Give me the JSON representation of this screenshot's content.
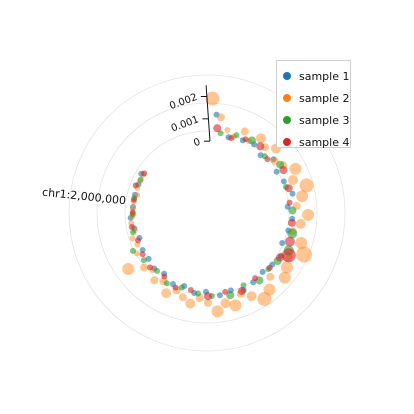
{
  "chart_data": {
    "type": "scatter",
    "layout": "circular",
    "radial_axis": {
      "ticks": [
        "0",
        "0.001",
        "0.002"
      ],
      "tick_values": [
        0,
        0.001,
        0.002
      ],
      "range": [
        0,
        0.0025
      ]
    },
    "angular_axis": {
      "label": "chr1:2,000,000",
      "label_position": 2000000,
      "range": [
        0,
        2500000
      ]
    },
    "grid": true,
    "legend": {
      "placement": "top-right",
      "entries": [
        "sample 1",
        "sample 2",
        "sample 3",
        "sample 4"
      ]
    },
    "series": [
      {
        "name": "sample 1",
        "color": "#1f77b4",
        "x": [
          40000,
          115000,
          190000,
          250000,
          310000,
          370000,
          430000,
          490000,
          560000,
          620000,
          680000,
          740000,
          810000,
          870000,
          930000,
          990000,
          1060000,
          1120000,
          1180000,
          1240000,
          1310000,
          1370000,
          1430000,
          1490000,
          1560000,
          1620000,
          1680000,
          1740000,
          1810000,
          1870000,
          1930000,
          1990000,
          2060000,
          2120000,
          2180000
        ],
        "y": [
          0.0012,
          0.0003,
          0.0004,
          0.0005,
          0.0003,
          0.0006,
          0.0004,
          0.0005,
          0.0007,
          0.0004,
          0.0006,
          0.0005,
          0.0004,
          0.0006,
          0.0005,
          0.0004,
          0.0005,
          0.0006,
          0.0004,
          0.0005,
          0.0003,
          0.0004,
          0.0002,
          0.0003,
          0.0001,
          0.0002,
          0.0001,
          0.0001,
          0.0,
          0.0001,
          0.0002,
          0.0001,
          0.0001,
          0.0001,
          0.0002
        ],
        "size": [
          3,
          3,
          3,
          3,
          3,
          3,
          3,
          3,
          3,
          3,
          3,
          3,
          3,
          3,
          3,
          3,
          3,
          3,
          3,
          3,
          3,
          3,
          3,
          3,
          3,
          3,
          3,
          3,
          3,
          3,
          3,
          3,
          3,
          3,
          3
        ]
      },
      {
        "name": "sample 2",
        "color": "#ff7f0e",
        "x": [
          20000,
          60000,
          100000,
          140000,
          180000,
          220000,
          260000,
          300000,
          340000,
          380000,
          420000,
          460000,
          500000,
          540000,
          580000,
          620000,
          660000,
          700000,
          740000,
          780000,
          820000,
          860000,
          900000,
          940000,
          980000,
          1020000,
          1060000,
          1100000,
          1140000,
          1180000,
          1220000,
          1260000,
          1300000,
          1340000,
          1380000,
          1420000,
          1460000,
          1500000,
          1540000,
          1580000,
          1620000,
          1660000,
          1700000,
          1740000,
          1780000,
          1820000,
          1860000,
          1900000,
          1940000,
          1980000,
          2020000,
          2060000,
          2100000,
          2140000,
          2180000
        ],
        "y": [
          0.0019,
          0.0011,
          0.0006,
          0.0004,
          0.0008,
          0.0005,
          0.0009,
          0.0007,
          0.001,
          0.0006,
          0.0008,
          0.0012,
          0.0009,
          0.0014,
          0.0011,
          0.0008,
          0.0013,
          0.001,
          0.0007,
          0.0012,
          0.0015,
          0.0009,
          0.0011,
          0.0013,
          0.0008,
          0.0012,
          0.0014,
          0.001,
          0.0007,
          0.0011,
          0.0009,
          0.0012,
          0.0008,
          0.0006,
          0.0009,
          0.0007,
          0.0005,
          0.0008,
          0.0004,
          0.0006,
          0.0003,
          0.0005,
          0.0011,
          0.0004,
          0.0002,
          0.0003,
          0.0001,
          0.0002,
          0.0001,
          0.0001,
          0.0001,
          0.0,
          0.0001,
          0.0001,
          0.0001
        ],
        "size": [
          7,
          4,
          3,
          3,
          4,
          3,
          5,
          4,
          5,
          4,
          4,
          6,
          5,
          7,
          6,
          4,
          6,
          5,
          4,
          6,
          8,
          5,
          6,
          6,
          4,
          6,
          7,
          5,
          4,
          6,
          5,
          6,
          4,
          4,
          5,
          4,
          4,
          5,
          4,
          4,
          3,
          4,
          6,
          3,
          3,
          3,
          3,
          3,
          3,
          3,
          3,
          3,
          3,
          3,
          3
        ]
      },
      {
        "name": "sample 3",
        "color": "#2ca02c",
        "x": [
          70000,
          150000,
          230000,
          330000,
          410000,
          520000,
          640000,
          750000,
          830000,
          900000,
          960000,
          1030000,
          1110000,
          1190000,
          1280000,
          1350000,
          1440000,
          1520000,
          1600000,
          1690000,
          1760000,
          1850000,
          1950000,
          2040000,
          2150000
        ],
        "y": [
          0.0004,
          0.0005,
          0.0006,
          0.0004,
          0.0007,
          0.0005,
          0.0006,
          0.0007,
          0.0008,
          0.0006,
          0.0005,
          0.0006,
          0.0004,
          0.0006,
          0.0005,
          0.0004,
          0.0003,
          0.0004,
          0.0002,
          0.0003,
          0.0005,
          0.0002,
          0.0001,
          0.0001,
          0.0001
        ],
        "size": [
          3,
          3,
          4,
          3,
          4,
          3,
          4,
          5,
          5,
          4,
          3,
          4,
          3,
          4,
          3,
          3,
          3,
          3,
          3,
          3,
          3,
          3,
          3,
          3,
          3
        ]
      },
      {
        "name": "sample 4",
        "color": "#d62728",
        "x": [
          50000,
          130000,
          200000,
          280000,
          350000,
          440000,
          530000,
          600000,
          700000,
          790000,
          850000,
          880000,
          950000,
          1040000,
          1130000,
          1210000,
          1300000,
          1390000,
          1470000,
          1550000,
          1640000,
          1720000,
          1800000,
          1880000,
          1960000,
          2030000,
          2110000,
          2190000
        ],
        "y": [
          0.0006,
          0.0003,
          0.0005,
          0.0006,
          0.0004,
          0.0007,
          0.0006,
          0.0005,
          0.0006,
          0.0007,
          0.0009,
          0.0006,
          0.0005,
          0.0004,
          0.0006,
          0.0004,
          0.0005,
          0.0003,
          0.0004,
          0.0002,
          0.0003,
          0.0002,
          0.0001,
          0.0002,
          0.0001,
          0.0001,
          0.0002,
          0.0001
        ],
        "size": [
          4,
          3,
          3,
          4,
          3,
          4,
          4,
          3,
          4,
          5,
          7,
          4,
          3,
          3,
          4,
          3,
          4,
          3,
          3,
          3,
          3,
          3,
          3,
          3,
          3,
          3,
          3,
          3
        ]
      }
    ]
  }
}
